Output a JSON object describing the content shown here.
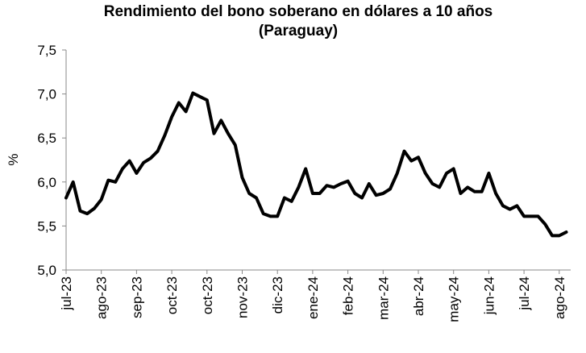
{
  "chart_data": {
    "type": "line",
    "title": "Rendimiento del bono soberano en dólares a 10 años",
    "subtitle": "(Paraguay)",
    "y_label": "%",
    "color": "#000000",
    "categories": [
      "jul-23",
      null,
      null,
      null,
      null,
      "ago-23",
      null,
      null,
      null,
      null,
      "sep-23",
      null,
      null,
      null,
      null,
      "oct-23",
      null,
      null,
      null,
      null,
      "oct-23",
      null,
      null,
      null,
      null,
      "nov-23",
      null,
      null,
      null,
      null,
      "dic-23",
      null,
      null,
      null,
      null,
      "ene-24",
      null,
      null,
      null,
      null,
      "feb-24",
      null,
      null,
      null,
      null,
      "mar-24",
      null,
      null,
      null,
      null,
      "abr-24",
      null,
      null,
      null,
      null,
      "may-24",
      null,
      null,
      null,
      null,
      "jun-24",
      null,
      null,
      null,
      null,
      "jul-24",
      null,
      null,
      null,
      null,
      "ago-24",
      null
    ],
    "values": [
      5.82,
      6.0,
      5.67,
      5.64,
      5.7,
      5.8,
      6.02,
      6.0,
      6.15,
      6.24,
      6.1,
      6.22,
      6.27,
      6.35,
      6.53,
      6.74,
      6.9,
      6.8,
      7.01,
      6.97,
      6.93,
      6.55,
      6.7,
      6.55,
      6.42,
      6.05,
      5.87,
      5.82,
      5.64,
      5.61,
      5.61,
      5.82,
      5.78,
      5.94,
      6.15,
      5.87,
      5.87,
      5.96,
      5.94,
      5.98,
      6.01,
      5.87,
      5.82,
      5.98,
      5.85,
      5.87,
      5.92,
      6.1,
      6.35,
      6.24,
      6.28,
      6.1,
      5.98,
      5.94,
      6.1,
      6.15,
      5.87,
      5.94,
      5.89,
      5.89,
      6.1,
      5.87,
      5.73,
      5.69,
      5.73,
      5.61,
      5.61,
      5.61,
      5.52,
      5.39,
      5.39,
      5.43
    ],
    "ylim": [
      5.0,
      7.5
    ],
    "yticks": [
      {
        "value": 5.0,
        "label": "5,0"
      },
      {
        "value": 5.5,
        "label": "5,5"
      },
      {
        "value": 6.0,
        "label": "6,0"
      },
      {
        "value": 6.5,
        "label": "6,5"
      },
      {
        "value": 7.0,
        "label": "7,0"
      },
      {
        "value": 7.5,
        "label": "7,5"
      }
    ],
    "grid": false
  }
}
